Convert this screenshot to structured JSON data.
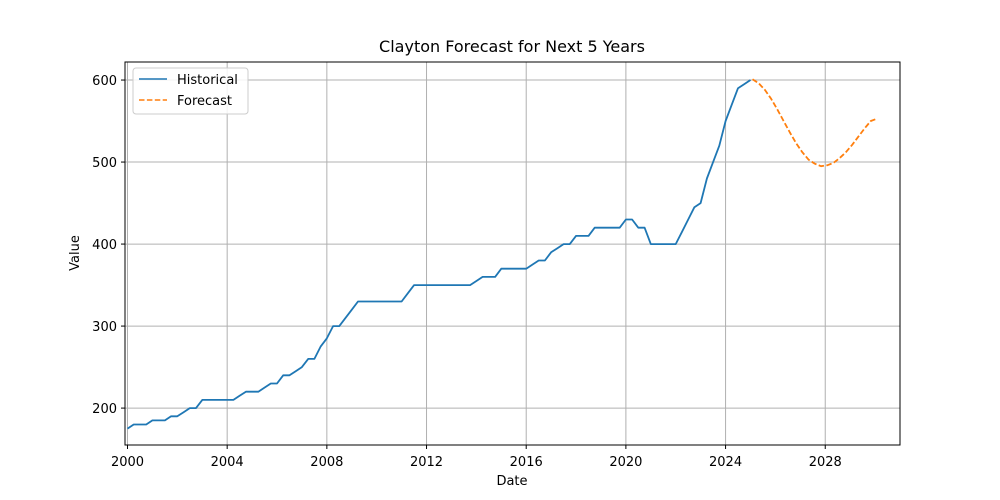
{
  "chart_data": {
    "type": "line",
    "title": "Clayton Forecast for Next 5 Years",
    "xlabel": "Date",
    "ylabel": "Value",
    "xlim": [
      1999.9,
      2031.0
    ],
    "ylim": [
      155,
      622
    ],
    "xticks": [
      {
        "value": 2000,
        "label": "2000"
      },
      {
        "value": 2004,
        "label": "2004"
      },
      {
        "value": 2008,
        "label": "2008"
      },
      {
        "value": 2012,
        "label": "2012"
      },
      {
        "value": 2016,
        "label": "2016"
      },
      {
        "value": 2020,
        "label": "2020"
      },
      {
        "value": 2024,
        "label": "2024"
      },
      {
        "value": 2028,
        "label": "2028"
      }
    ],
    "yticks": [
      {
        "value": 200,
        "label": "200"
      },
      {
        "value": 300,
        "label": "300"
      },
      {
        "value": 400,
        "label": "400"
      },
      {
        "value": 500,
        "label": "500"
      },
      {
        "value": 600,
        "label": "600"
      }
    ],
    "grid": true,
    "legend": "top-left",
    "series": [
      {
        "name": "Historical",
        "color": "#1f77b4",
        "style": "solid",
        "x": [
          2000.0,
          2000.25,
          2000.5,
          2000.75,
          2001.0,
          2001.25,
          2001.5,
          2001.75,
          2002.0,
          2002.25,
          2002.5,
          2002.75,
          2003.0,
          2003.25,
          2003.5,
          2003.75,
          2004.0,
          2004.25,
          2004.5,
          2004.75,
          2005.0,
          2005.25,
          2005.5,
          2005.75,
          2006.0,
          2006.25,
          2006.5,
          2006.75,
          2007.0,
          2007.25,
          2007.5,
          2007.75,
          2008.0,
          2008.25,
          2008.5,
          2008.75,
          2009.0,
          2009.25,
          2009.5,
          2009.75,
          2010.0,
          2010.25,
          2010.5,
          2010.75,
          2011.0,
          2011.25,
          2011.5,
          2011.75,
          2012.0,
          2012.25,
          2012.5,
          2012.75,
          2013.0,
          2013.25,
          2013.5,
          2013.75,
          2014.0,
          2014.25,
          2014.5,
          2014.75,
          2015.0,
          2015.25,
          2015.5,
          2015.75,
          2016.0,
          2016.25,
          2016.5,
          2016.75,
          2017.0,
          2017.25,
          2017.5,
          2017.75,
          2018.0,
          2018.25,
          2018.5,
          2018.75,
          2019.0,
          2019.25,
          2019.5,
          2019.75,
          2020.0,
          2020.25,
          2020.5,
          2020.75,
          2021.0,
          2021.25,
          2021.5,
          2021.75,
          2022.0,
          2022.25,
          2022.5,
          2022.75,
          2023.0,
          2023.25,
          2023.5,
          2023.75,
          2024.0,
          2024.25,
          2024.5,
          2024.75,
          2025.0
        ],
        "values": [
          175,
          180,
          180,
          180,
          185,
          185,
          185,
          190,
          190,
          195,
          200,
          200,
          210,
          210,
          210,
          210,
          210,
          210,
          215,
          220,
          220,
          220,
          225,
          230,
          230,
          240,
          240,
          245,
          250,
          260,
          260,
          275,
          285,
          300,
          300,
          310,
          320,
          330,
          330,
          330,
          330,
          330,
          330,
          330,
          330,
          340,
          350,
          350,
          350,
          350,
          350,
          350,
          350,
          350,
          350,
          350,
          355,
          360,
          360,
          360,
          370,
          370,
          370,
          370,
          370,
          375,
          380,
          380,
          390,
          395,
          400,
          400,
          410,
          410,
          410,
          420,
          420,
          420,
          420,
          420,
          430,
          430,
          420,
          420,
          400,
          400,
          400,
          400,
          400,
          415,
          430,
          445,
          450,
          480,
          500,
          520,
          550,
          570,
          590,
          595,
          600
        ]
      },
      {
        "name": "Forecast",
        "color": "#ff7f0e",
        "style": "dashed",
        "x": [
          2025.08,
          2025.33,
          2025.58,
          2025.83,
          2026.08,
          2026.33,
          2026.58,
          2026.83,
          2027.08,
          2027.33,
          2027.58,
          2027.83,
          2028.08,
          2028.33,
          2028.58,
          2028.83,
          2029.08,
          2029.33,
          2029.58,
          2029.83,
          2030.08
        ],
        "values": [
          601,
          596,
          588,
          577,
          564,
          550,
          536,
          523,
          512,
          503,
          498,
          495,
          496,
          499,
          505,
          512,
          521,
          531,
          541,
          550,
          553
        ]
      }
    ]
  }
}
